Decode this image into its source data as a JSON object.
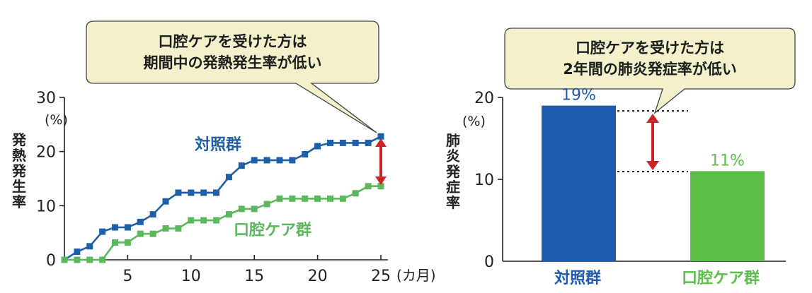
{
  "chart_data": [
    {
      "type": "line",
      "callout": [
        "口腔ケアを受けた方は",
        "期間中の発熱発生率が低い"
      ],
      "ylabel": "発熱発生率",
      "yunit": "(%)",
      "xunit": "(カ月)",
      "ylim": [
        0,
        30
      ],
      "xlim": [
        0,
        25
      ],
      "yticks": [
        "0",
        "10",
        "20",
        "30"
      ],
      "xticks": [
        "5",
        "10",
        "15",
        "20",
        "25"
      ],
      "xtick_values": [
        5,
        10,
        15,
        20,
        25
      ],
      "ytick_values": [
        0,
        10,
        20,
        30
      ],
      "x": [
        0,
        1,
        2,
        3,
        4,
        5,
        6,
        7,
        8,
        9,
        10,
        11,
        12,
        13,
        14,
        15,
        16,
        17,
        18,
        19,
        20,
        21,
        22,
        23,
        24,
        25
      ],
      "series": [
        {
          "name": "対照群",
          "color": "#1f5fa8",
          "values": [
            0,
            1.5,
            2.5,
            5.2,
            6,
            6,
            7,
            8.4,
            10.8,
            12.4,
            12.4,
            12.4,
            12.4,
            15.3,
            17.4,
            18.4,
            18.4,
            18.4,
            18.4,
            19.5,
            21,
            21.6,
            21.6,
            21.6,
            21.6,
            22.8
          ]
        },
        {
          "name": "口腔ケア群",
          "color": "#5cb85c",
          "values": [
            0,
            0,
            0,
            0,
            3.2,
            3.2,
            4.8,
            4.8,
            5.8,
            5.8,
            7.3,
            7.3,
            7.3,
            8.4,
            9.4,
            9.4,
            10.3,
            11.3,
            11.3,
            11.3,
            11.3,
            11.3,
            11.3,
            12.3,
            13.6,
            13.6
          ]
        }
      ]
    },
    {
      "type": "bar",
      "callout": [
        "口腔ケアを受けた方は",
        "2年間の肺炎発症率が低い"
      ],
      "ylabel": "肺炎発症率",
      "yunit": "(%)",
      "ylim": [
        0,
        20
      ],
      "yticks": [
        "0",
        "10",
        "20"
      ],
      "ytick_values": [
        0,
        10,
        20
      ],
      "categories": [
        "対照群",
        "口腔ケア群"
      ],
      "values": [
        19,
        11
      ],
      "data_labels": [
        "19%",
        "11%"
      ],
      "colors": [
        "#1e5bb0",
        "#5cbf4a"
      ]
    }
  ],
  "arrow_color": "#c8262a",
  "bubble_fill": "#f4f0cc"
}
